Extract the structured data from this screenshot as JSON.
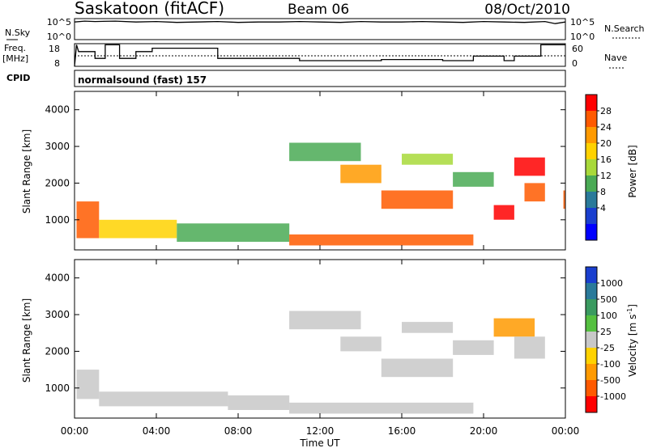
{
  "header": {
    "station": "Saskatoon (fitACF)",
    "beam": "Beam 06",
    "date": "08/Oct/2010"
  },
  "nsky_panel": {
    "left_label": "N.Sky",
    "ticks_left": [
      "10^5",
      "10^0"
    ],
    "right_label": "N.Search",
    "ticks_right": [
      "10^5",
      "10^0"
    ]
  },
  "freq_panel": {
    "label_line1": "Freq.",
    "label_line2": "[MHz]",
    "ticks_left": [
      "18",
      "8"
    ],
    "right_label": "Nave",
    "ticks_right": [
      "60",
      "0"
    ]
  },
  "cpid": {
    "label": "CPID",
    "text": "normalsound (fast) 157"
  },
  "power_panel": {
    "ylabel": "Slant Range [km]",
    "yticks": [
      "4000",
      "3000",
      "2000",
      "1000"
    ]
  },
  "velocity_panel": {
    "ylabel": "Slant Range [km]",
    "yticks": [
      "4000",
      "3000",
      "2000",
      "1000"
    ]
  },
  "xaxis": {
    "label": "Time UT",
    "ticks": [
      "00:00",
      "04:00",
      "08:00",
      "12:00",
      "16:00",
      "20:00",
      "00:00"
    ]
  },
  "power_colorbar": {
    "title": "Power [dB]",
    "labels": [
      "28",
      "24",
      "20",
      "16",
      "12",
      "8",
      "4"
    ],
    "colors": [
      "#ff0000",
      "#ff5a00",
      "#ff9a00",
      "#ffd200",
      "#a8d93a",
      "#4aaa55",
      "#2a7a9a",
      "#1a3fcf",
      "#0000ff"
    ]
  },
  "velocity_colorbar": {
    "title_main": "Velocity [m s",
    "title_sup": "-1",
    "title_end": "]",
    "labels": [
      "1000",
      "500",
      "100",
      "25",
      "-25",
      "-100",
      "-500",
      "-1000"
    ],
    "colors": [
      "#1a3fcf",
      "#2a7a9a",
      "#3a9a60",
      "#55c040",
      "#c8c8c8",
      "#ffd200",
      "#ff9a00",
      "#ff5a00",
      "#ff0000"
    ]
  },
  "chart_data": [
    {
      "type": "line",
      "name": "nsky",
      "x": [
        0,
        0.5,
        1,
        2,
        3,
        4,
        5,
        6,
        7,
        8,
        9,
        10,
        11,
        12,
        13,
        14,
        15,
        16,
        17,
        18,
        19,
        20,
        21,
        22,
        23,
        23.5,
        24
      ],
      "values": [
        4.2,
        4.4,
        4.3,
        4.4,
        4.2,
        4.3,
        4.1,
        4.2,
        4.3,
        4.1,
        4.2,
        4.2,
        4.3,
        4.2,
        4.1,
        4.3,
        4.2,
        4.2,
        4.3,
        4.2,
        4.1,
        4.3,
        4.2,
        4.1,
        4.3,
        3.8,
        4.2
      ],
      "ylim": [
        0,
        5
      ]
    },
    {
      "type": "line",
      "name": "frequency",
      "x": [
        0,
        0.1,
        0.2,
        1.0,
        1.0,
        1.5,
        1.5,
        2.2,
        2.2,
        3.0,
        3.0,
        3.8,
        3.8,
        7.0,
        7.0,
        11.0,
        11.0,
        15.0,
        15.0,
        18.0,
        18.0,
        19.5,
        19.5,
        21.0,
        21.0,
        21.5,
        21.5,
        22.8,
        22.8,
        24.0
      ],
      "values": [
        8,
        17.5,
        14.5,
        14.5,
        11.5,
        11.5,
        17.5,
        17.5,
        11.5,
        11.5,
        14.5,
        14.5,
        16,
        16,
        11.5,
        11.5,
        10.5,
        10.5,
        11,
        11,
        10.5,
        10.5,
        12.5,
        12.5,
        10.5,
        10.5,
        12.5,
        12.5,
        17.5,
        17.5
      ],
      "ylim": [
        8,
        18
      ]
    },
    {
      "type": "heatmap",
      "name": "power",
      "xlim": [
        0,
        24
      ],
      "ylim": [
        180,
        4500
      ],
      "vlim": [
        0,
        30
      ],
      "regions": [
        {
          "t0": 0.1,
          "t1": 1.2,
          "r0": 500,
          "r1": 1500,
          "value": 26
        },
        {
          "t0": 1.2,
          "t1": 5.0,
          "r0": 500,
          "r1": 1000,
          "value": 17
        },
        {
          "t0": 5.0,
          "t1": 10.5,
          "r0": 400,
          "r1": 900,
          "value": 12
        },
        {
          "t0": 10.5,
          "t1": 19.5,
          "r0": 300,
          "r1": 600,
          "value": 26
        },
        {
          "t0": 10.5,
          "t1": 14.0,
          "r0": 2600,
          "r1": 3100,
          "value": 11
        },
        {
          "t0": 13.0,
          "t1": 15.0,
          "r0": 2000,
          "r1": 2500,
          "value": 23
        },
        {
          "t0": 15.0,
          "t1": 18.5,
          "r0": 1300,
          "r1": 1800,
          "value": 25
        },
        {
          "t0": 16.0,
          "t1": 18.5,
          "r0": 2500,
          "r1": 2800,
          "value": 15
        },
        {
          "t0": 18.5,
          "t1": 20.5,
          "r0": 1900,
          "r1": 2300,
          "value": 10
        },
        {
          "t0": 20.5,
          "t1": 21.5,
          "r0": 1000,
          "r1": 1400,
          "value": 27
        },
        {
          "t0": 21.5,
          "t1": 23.0,
          "r0": 2200,
          "r1": 2700,
          "value": 27
        },
        {
          "t0": 22.0,
          "t1": 23.0,
          "r0": 1500,
          "r1": 2000,
          "value": 24
        },
        {
          "t0": 23.9,
          "t1": 24.0,
          "r0": 1300,
          "r1": 1800,
          "value": 26
        }
      ]
    },
    {
      "type": "heatmap",
      "name": "velocity",
      "xlim": [
        0,
        24
      ],
      "ylim": [
        180,
        4500
      ],
      "vlim": [
        -1000,
        1000
      ],
      "regions": [
        {
          "t0": 0.1,
          "t1": 1.2,
          "r0": 700,
          "r1": 1500,
          "value": 80
        },
        {
          "t0": 1.2,
          "t1": 7.5,
          "r0": 500,
          "r1": 900,
          "value": 90
        },
        {
          "t0": 7.5,
          "t1": 10.5,
          "r0": 400,
          "r1": 800,
          "value": 60
        },
        {
          "t0": 10.5,
          "t1": 19.5,
          "r0": 300,
          "r1": 600,
          "value": -80
        },
        {
          "t0": 10.5,
          "t1": 14.0,
          "r0": 2600,
          "r1": 3100,
          "value": 0
        },
        {
          "t0": 13.0,
          "t1": 15.0,
          "r0": 2000,
          "r1": 2400,
          "value": 0
        },
        {
          "t0": 15.0,
          "t1": 18.5,
          "r0": 1300,
          "r1": 1800,
          "value": 0
        },
        {
          "t0": 16.0,
          "t1": 18.5,
          "r0": 2500,
          "r1": 2800,
          "value": -20
        },
        {
          "t0": 18.5,
          "t1": 20.5,
          "r0": 1900,
          "r1": 2300,
          "value": 0
        },
        {
          "t0": 20.5,
          "t1": 22.5,
          "r0": 2400,
          "r1": 2900,
          "value": -400
        },
        {
          "t0": 21.5,
          "t1": 23.0,
          "r0": 1800,
          "r1": 2400,
          "value": 0
        }
      ]
    }
  ]
}
